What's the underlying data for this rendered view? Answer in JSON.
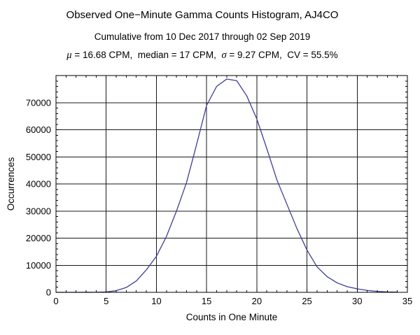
{
  "header": {
    "title": "Observed One−Minute Gamma Counts Histogram, AJ4CO",
    "subtitle": "Cumulative from 10 Dec 2017 through 02 Sep 2019",
    "stats_segments": [
      {
        "text": "μ",
        "italic": true
      },
      {
        "text": " = 16.68 CPM,  median = 17 CPM,  ",
        "italic": false
      },
      {
        "text": "σ",
        "italic": true
      },
      {
        "text": " = 9.27 CPM,  CV = 55.5%",
        "italic": false
      }
    ],
    "stats": {
      "mean_cpm": 16.68,
      "median_cpm": 17,
      "sigma_cpm": 9.27,
      "cv_percent": 55.5
    }
  },
  "chart_data": {
    "type": "line",
    "title": "Observed One−Minute Gamma Counts Histogram, AJ4CO",
    "subtitle": "Cumulative from 10 Dec 2017 through 02 Sep 2019",
    "xlabel": "Counts in One Minute",
    "ylabel": "Occurrences",
    "xlim": [
      0,
      35
    ],
    "ylim": [
      0,
      80000
    ],
    "xticks_major": [
      0,
      5,
      10,
      15,
      20,
      25,
      30,
      35
    ],
    "yticks_major": [
      0,
      10000,
      20000,
      30000,
      40000,
      50000,
      60000,
      70000
    ],
    "x_minor_step": 1,
    "y_minor_step": 2000,
    "grid": true,
    "legend": "none",
    "line_color": "#3F3D99",
    "frame_color": "#000000",
    "grid_color": "#1a1a1a",
    "background": "#ffffff",
    "x": [
      0,
      1,
      2,
      3,
      4,
      5,
      6,
      7,
      8,
      9,
      10,
      11,
      12,
      13,
      14,
      15,
      16,
      17,
      18,
      19,
      20,
      21,
      22,
      23,
      24,
      25,
      26,
      27,
      28,
      29,
      30,
      31,
      32,
      33,
      34
    ],
    "values": [
      0,
      0,
      0,
      10,
      40,
      150,
      600,
      1800,
      4200,
      8300,
      13300,
      20600,
      30000,
      40500,
      54500,
      69000,
      76000,
      78700,
      78100,
      72500,
      64000,
      53000,
      41500,
      32500,
      23500,
      15600,
      9400,
      5800,
      3500,
      2100,
      1300,
      700,
      350,
      170,
      80
    ]
  }
}
